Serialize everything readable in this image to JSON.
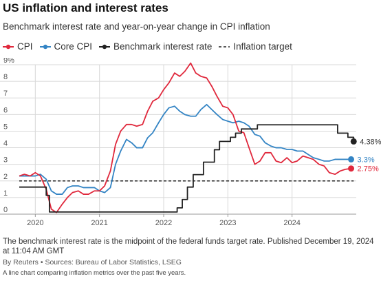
{
  "colors": {
    "cpi": "#e0283c",
    "core_cpi": "#3384c4",
    "benchmark": "#222222",
    "target": "#222222",
    "grid": "#d8d8d8"
  },
  "chart_data": {
    "type": "line",
    "title": "US inflation and interest rates",
    "subtitle": "Benchmark interest rate and year-on-year change in CPI inflation",
    "ylim": [
      0,
      9
    ],
    "y_ticks": [
      "0",
      "1",
      "2",
      "3",
      "4",
      "5",
      "6",
      "7",
      "8",
      "9%"
    ],
    "x_ticks": [
      "2020",
      "2021",
      "2022",
      "2023",
      "2024"
    ],
    "xlim": [
      2019.75,
      2025.0
    ],
    "legend_position": "top",
    "series": [
      {
        "key": "cpi",
        "name": "CPI",
        "end_label": "2.75%",
        "x": [
          2019.75,
          2019.83,
          2019.92,
          2020.0,
          2020.08,
          2020.17,
          2020.25,
          2020.33,
          2020.42,
          2020.5,
          2020.58,
          2020.67,
          2020.75,
          2020.83,
          2020.92,
          2021.0,
          2021.08,
          2021.17,
          2021.25,
          2021.33,
          2021.42,
          2021.5,
          2021.58,
          2021.67,
          2021.75,
          2021.83,
          2021.92,
          2022.0,
          2022.08,
          2022.17,
          2022.25,
          2022.33,
          2022.42,
          2022.5,
          2022.58,
          2022.67,
          2022.75,
          2022.83,
          2022.92,
          2023.0,
          2023.08,
          2023.17,
          2023.25,
          2023.33,
          2023.42,
          2023.5,
          2023.58,
          2023.67,
          2023.75,
          2023.83,
          2023.92,
          2024.0,
          2024.08,
          2024.17,
          2024.25,
          2024.33,
          2024.42,
          2024.5,
          2024.58,
          2024.67,
          2024.75,
          2024.83,
          2024.92
        ],
        "y": [
          2.3,
          2.4,
          2.3,
          2.5,
          2.3,
          1.5,
          0.3,
          0.1,
          0.6,
          1.0,
          1.3,
          1.4,
          1.2,
          1.2,
          1.4,
          1.4,
          1.7,
          2.6,
          4.2,
          5.0,
          5.4,
          5.4,
          5.3,
          5.4,
          6.2,
          6.8,
          7.0,
          7.5,
          7.9,
          8.5,
          8.3,
          8.6,
          9.1,
          8.5,
          8.3,
          8.2,
          7.7,
          7.1,
          6.5,
          6.4,
          6.0,
          5.0,
          4.9,
          4.0,
          3.0,
          3.2,
          3.7,
          3.7,
          3.2,
          3.1,
          3.4,
          3.1,
          3.2,
          3.5,
          3.4,
          3.3,
          3.0,
          2.9,
          2.5,
          2.4,
          2.6,
          2.7,
          2.75
        ]
      },
      {
        "key": "core_cpi",
        "name": "Core CPI",
        "end_label": "3.3%",
        "x": [
          2019.75,
          2019.83,
          2019.92,
          2020.0,
          2020.08,
          2020.17,
          2020.25,
          2020.33,
          2020.42,
          2020.5,
          2020.58,
          2020.67,
          2020.75,
          2020.83,
          2020.92,
          2021.0,
          2021.08,
          2021.17,
          2021.25,
          2021.33,
          2021.42,
          2021.5,
          2021.58,
          2021.67,
          2021.75,
          2021.83,
          2021.92,
          2022.0,
          2022.08,
          2022.17,
          2022.25,
          2022.33,
          2022.42,
          2022.5,
          2022.58,
          2022.67,
          2022.75,
          2022.83,
          2022.92,
          2023.0,
          2023.08,
          2023.17,
          2023.25,
          2023.33,
          2023.42,
          2023.5,
          2023.58,
          2023.67,
          2023.75,
          2023.83,
          2023.92,
          2024.0,
          2024.08,
          2024.17,
          2024.25,
          2024.33,
          2024.42,
          2024.5,
          2024.58,
          2024.67,
          2024.75,
          2024.83,
          2024.92
        ],
        "y": [
          2.3,
          2.3,
          2.3,
          2.3,
          2.4,
          2.1,
          1.4,
          1.2,
          1.2,
          1.6,
          1.7,
          1.7,
          1.6,
          1.6,
          1.6,
          1.4,
          1.3,
          1.6,
          3.0,
          3.8,
          4.5,
          4.3,
          4.0,
          4.0,
          4.6,
          4.9,
          5.5,
          6.0,
          6.4,
          6.5,
          6.2,
          6.0,
          5.9,
          5.9,
          6.3,
          6.6,
          6.3,
          6.0,
          5.7,
          5.6,
          5.5,
          5.6,
          5.5,
          5.3,
          4.8,
          4.7,
          4.3,
          4.1,
          4.0,
          4.0,
          3.9,
          3.9,
          3.8,
          3.8,
          3.6,
          3.4,
          3.3,
          3.2,
          3.2,
          3.3,
          3.3,
          3.3,
          3.3
        ]
      },
      {
        "key": "benchmark",
        "name": "Benchmark interest rate",
        "end_label": "4.38%",
        "step": true,
        "x": [
          2019.75,
          2019.88,
          2020.0,
          2020.13,
          2020.17,
          2020.22,
          2020.5,
          2021.0,
          2021.5,
          2022.0,
          2022.12,
          2022.21,
          2022.29,
          2022.37,
          2022.46,
          2022.54,
          2022.62,
          2022.71,
          2022.79,
          2022.87,
          2022.96,
          2023.04,
          2023.12,
          2023.21,
          2023.29,
          2023.37,
          2023.46,
          2023.54,
          2023.62,
          2024.0,
          2024.5,
          2024.71,
          2024.87,
          2024.96
        ],
        "y": [
          1.63,
          1.63,
          1.63,
          1.63,
          1.13,
          0.13,
          0.13,
          0.13,
          0.13,
          0.13,
          0.13,
          0.38,
          0.88,
          1.63,
          2.38,
          2.38,
          3.13,
          3.13,
          3.88,
          4.38,
          4.38,
          4.63,
          4.88,
          5.13,
          5.13,
          5.13,
          5.38,
          5.38,
          5.38,
          5.38,
          5.38,
          4.88,
          4.63,
          4.38
        ]
      },
      {
        "key": "target",
        "name": "Inflation target",
        "dashed": true,
        "x": [
          2019.75,
          2024.96
        ],
        "y": [
          2,
          2
        ]
      }
    ]
  },
  "footnote": "The benchmark interest rate is the midpoint of the federal funds target rate. Published December 19, 2024 at 11:04 AM GMT",
  "source": "By Reuters • Sources: Bureau of Labor Statistics, LSEG",
  "alt_text": "A line chart comparing inflation metrics over the past five years."
}
